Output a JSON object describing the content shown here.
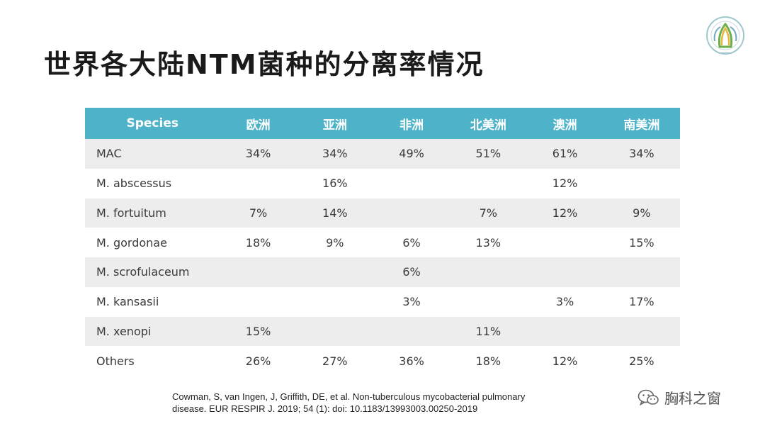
{
  "slide": {
    "title": "世界各大陆NTM菌种的分离率情况"
  },
  "table": {
    "headers": [
      "Species",
      "欧洲",
      "亚洲",
      "非洲",
      "北美洲",
      "澳洲",
      "南美洲"
    ],
    "rows": [
      [
        "MAC",
        "34%",
        "34%",
        "49%",
        "51%",
        "61%",
        "34%"
      ],
      [
        "M. abscessus",
        "",
        "16%",
        "",
        "",
        "12%",
        ""
      ],
      [
        "M. fortuitum",
        "7%",
        "14%",
        "",
        "7%",
        "12%",
        "9%"
      ],
      [
        "M. gordonae",
        "18%",
        "9%",
        "6%",
        "13%",
        "",
        "15%"
      ],
      [
        "M. scrofulaceum",
        "",
        "",
        "6%",
        "",
        "",
        ""
      ],
      [
        "M. kansasii",
        "",
        "",
        "3%",
        "",
        "3%",
        "17%"
      ],
      [
        "M. xenopi",
        "15%",
        "",
        "",
        "11%",
        "",
        ""
      ],
      [
        "Others",
        "26%",
        "27%",
        "36%",
        "18%",
        "12%",
        "25%"
      ]
    ]
  },
  "citation": {
    "line1": "Cowman, S, van Ingen, J, Griffith, DE, et al. Non-tuberculous mycobacterial pulmonary",
    "line2": "disease. EUR RESPIR J. 2019; 54 (1): doi: 10.1183/13993003.00250-2019"
  },
  "watermark": {
    "text": "胸科之窗",
    "icon": "wechat-icon"
  },
  "logo": {
    "icon": "hospital-logo-icon"
  },
  "colors": {
    "header_bg": "#4eb3c8",
    "row_alt_bg": "#ededed"
  }
}
